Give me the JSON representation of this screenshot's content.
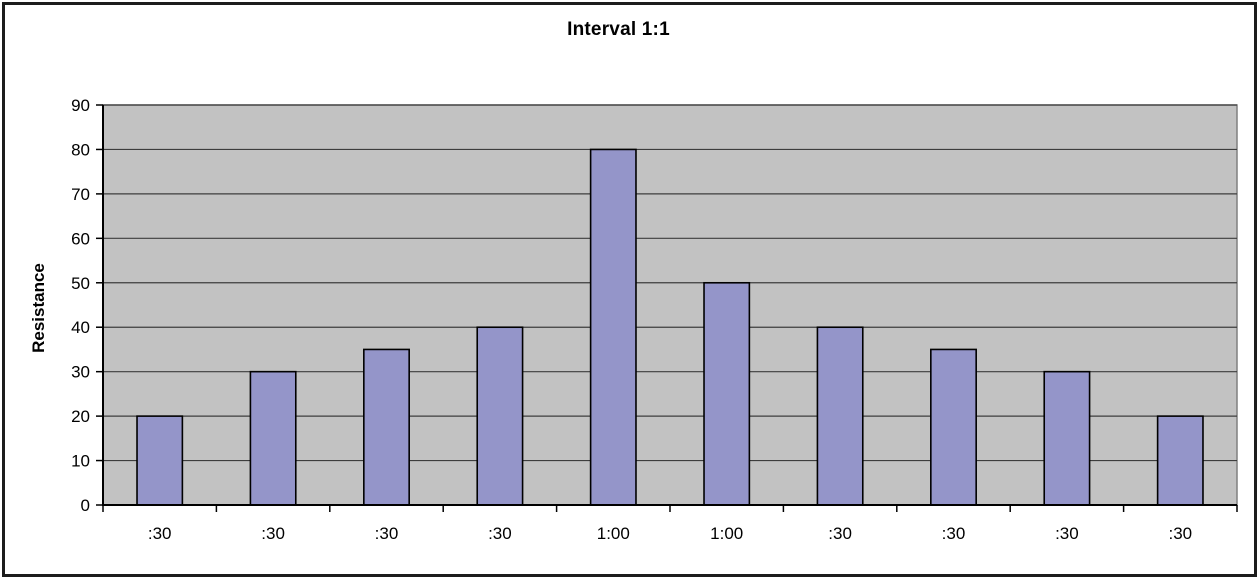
{
  "chart_data": {
    "type": "bar",
    "title": "Interval 1:1",
    "xlabel": "",
    "ylabel": "Resistance",
    "categories": [
      ":30",
      ":30",
      ":30",
      ":30",
      "1:00",
      "1:00",
      ":30",
      ":30",
      ":30",
      ":30"
    ],
    "values": [
      20,
      30,
      35,
      40,
      80,
      50,
      40,
      35,
      30,
      20
    ],
    "ylim": [
      0,
      90
    ],
    "ytick_step": 10,
    "yticks": [
      0,
      10,
      20,
      30,
      40,
      50,
      60,
      70,
      80,
      90
    ],
    "grid": true,
    "legend": "none",
    "colors": {
      "bar_fill": "#9495C9",
      "bar_border": "#000000",
      "plot_bg": "#C2C2C2",
      "plot_border": "#808080",
      "gridline": "#3d3d3d",
      "axis": "#000000",
      "text": "#000000",
      "background": "#FFFFFF",
      "outer_border": "#1C1C1C"
    }
  }
}
